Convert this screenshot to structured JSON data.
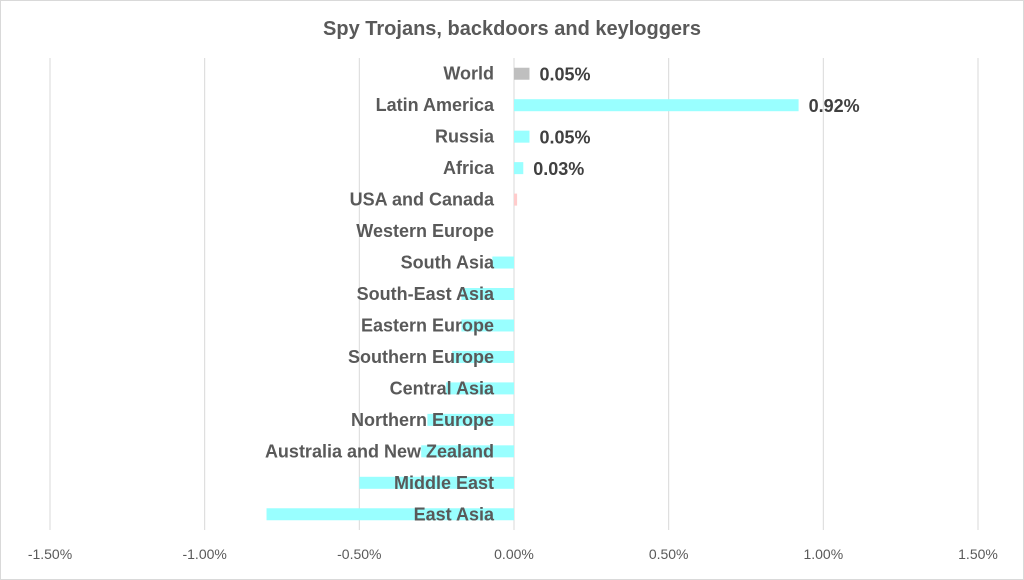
{
  "chart_data": {
    "type": "bar",
    "orientation": "horizontal",
    "title": "Spy Trojans, backdoors and keyloggers",
    "categories": [
      "World",
      "Latin America",
      "Russia",
      "Africa",
      "USA and Canada",
      "Western Europe",
      "South Asia",
      "South-East Asia",
      "Eastern Europe",
      "Southern Europe",
      "Central Asia",
      "Northern Europe",
      "Australia and New Zealand",
      "Middle East",
      "East Asia"
    ],
    "values": [
      0.05,
      0.92,
      0.05,
      0.03,
      0.01,
      0.0,
      -0.07,
      -0.17,
      -0.17,
      -0.2,
      -0.22,
      -0.28,
      -0.3,
      -0.5,
      -0.8
    ],
    "value_unit": "%",
    "data_labels": [
      "0.05%",
      "0.92%",
      "0.05%",
      "0.03%",
      "",
      "",
      "",
      "",
      "",
      "",
      "",
      "",
      "",
      "",
      ""
    ],
    "bar_colors": [
      "#bfbfbf",
      "#99ffff",
      "#99ffff",
      "#99ffff",
      "#ffcccc",
      "#99ffff",
      "#99ffff",
      "#99ffff",
      "#99ffff",
      "#99ffff",
      "#99ffff",
      "#99ffff",
      "#99ffff",
      "#99ffff",
      "#99ffff"
    ],
    "xlim": [
      -1.5,
      1.5
    ],
    "x_ticks": [
      -1.5,
      -1.0,
      -0.5,
      0.0,
      0.5,
      1.0,
      1.5
    ],
    "x_tick_labels": [
      "-1.50%",
      "-1.00%",
      "-0.50%",
      "0.00%",
      "0.50%",
      "1.00%",
      "1.50%"
    ],
    "grid": "vertical",
    "gridline_color": "#d9d9d9",
    "label_color": "#595959"
  }
}
